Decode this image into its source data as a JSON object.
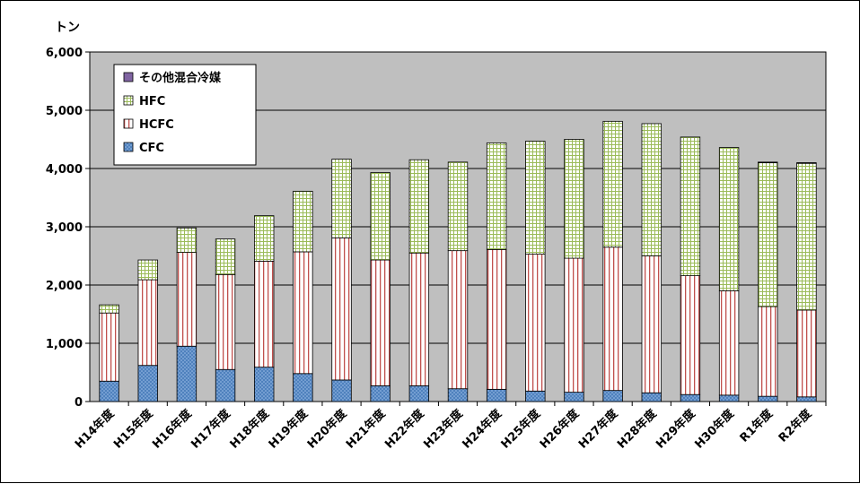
{
  "chart_data": {
    "type": "bar",
    "stacked": true,
    "unit_label": "トン",
    "categories": [
      "H14年度",
      "H15年度",
      "H16年度",
      "H17年度",
      "H18年度",
      "H19年度",
      "H20年度",
      "H21年度",
      "H22年度",
      "H23年度",
      "H24年度",
      "H25年度",
      "H26年度",
      "H27年度",
      "H28年度",
      "H29年度",
      "H30年度",
      "R1年度",
      "R2年度"
    ],
    "y_ticks": [
      "0",
      "1,000",
      "2,000",
      "3,000",
      "4,000",
      "5,000",
      "6,000"
    ],
    "ylim": [
      0,
      6000
    ],
    "grid": true,
    "legend_position": "top-left inside",
    "series": [
      {
        "name": "CFC",
        "color": "#4f81bd",
        "pattern": "dots",
        "values": [
          350,
          620,
          950,
          550,
          590,
          480,
          370,
          270,
          270,
          220,
          210,
          180,
          160,
          190,
          150,
          120,
          110,
          90,
          80
        ]
      },
      {
        "name": "HCFC",
        "color": "#c0504d",
        "pattern": "vertical-stripes",
        "values": [
          1170,
          1470,
          1610,
          1630,
          1820,
          2090,
          2440,
          2160,
          2280,
          2370,
          2400,
          2350,
          2300,
          2460,
          2350,
          2040,
          1790,
          1540,
          1490
        ]
      },
      {
        "name": "HFC",
        "color": "#9bbb59",
        "pattern": "grid",
        "values": [
          140,
          340,
          420,
          610,
          780,
          1040,
          1350,
          1500,
          1600,
          1520,
          1830,
          1940,
          2040,
          2160,
          2270,
          2380,
          2460,
          2470,
          2520
        ]
      },
      {
        "name": "その他混合冷媒",
        "color": "#8064a2",
        "pattern": "solid",
        "values": [
          0,
          0,
          0,
          0,
          0,
          0,
          0,
          0,
          0,
          0,
          0,
          0,
          0,
          0,
          0,
          0,
          0,
          10,
          10
        ]
      }
    ],
    "legend_order": [
      "その他混合冷媒",
      "HFC",
      "HCFC",
      "CFC"
    ]
  }
}
